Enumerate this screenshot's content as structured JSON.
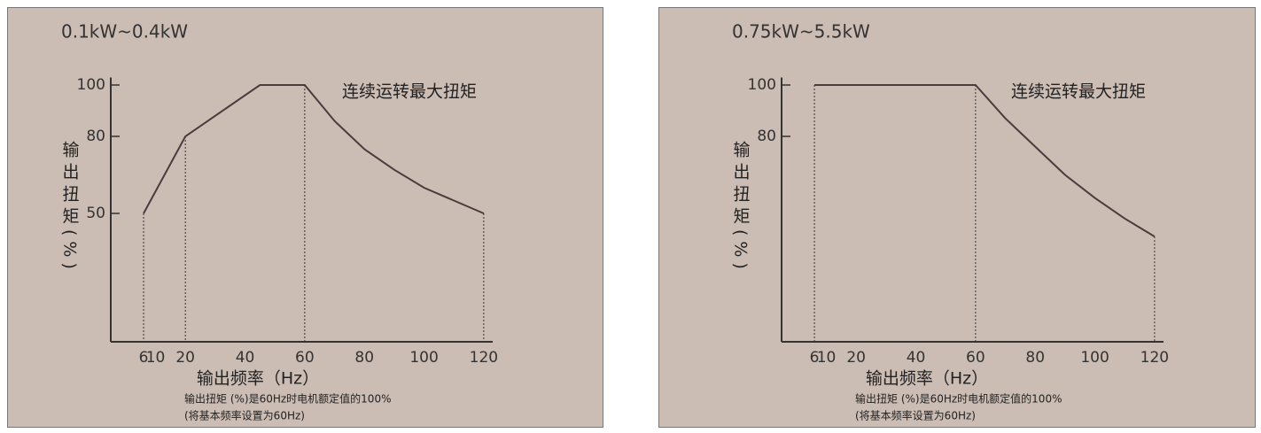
{
  "chart_data": [
    {
      "type": "line",
      "title": "0.1kW~0.4kW",
      "annotation": "连续运转最大扭矩",
      "y_label": "输出扭矩(%)",
      "x_label": "输出频率（Hz）",
      "notes": [
        "输出扭矩 (%)是60Hz时电机额定值的100%",
        "(将基本频率设置为60Hz)"
      ],
      "x": [
        6,
        20,
        45,
        60,
        70,
        80,
        90,
        100,
        110,
        120
      ],
      "values": [
        50,
        80,
        100,
        100,
        86,
        75,
        67,
        60,
        55,
        50
      ],
      "color": "#4a3c3c",
      "xlim": [
        -5,
        123
      ],
      "ylim": [
        0,
        105
      ],
      "xticks": [
        6,
        10,
        20,
        40,
        60,
        80,
        100,
        120
      ],
      "yticks": [
        50,
        80,
        100
      ],
      "drop_lines": [
        6,
        20,
        60,
        120
      ]
    },
    {
      "type": "line",
      "title": "0.75kW~5.5kW",
      "annotation": "连续运转最大扭矩",
      "y_label": "输出扭矩(%)",
      "x_label": "输出频率（Hz）",
      "notes": [
        "输出扭矩 (%)是60Hz时电机额定值的100%",
        "(将基本频率设置为60Hz)"
      ],
      "x": [
        6,
        60,
        70,
        80,
        90,
        100,
        110,
        120
      ],
      "values": [
        100,
        100,
        87,
        76,
        65,
        56,
        48,
        41
      ],
      "color": "#4a3c3c",
      "xlim": [
        -5,
        123
      ],
      "ylim": [
        0,
        105
      ],
      "xticks": [
        6,
        10,
        20,
        40,
        60,
        80,
        100,
        120
      ],
      "yticks": [
        80,
        100
      ],
      "drop_lines": [
        6,
        60,
        120
      ]
    }
  ]
}
